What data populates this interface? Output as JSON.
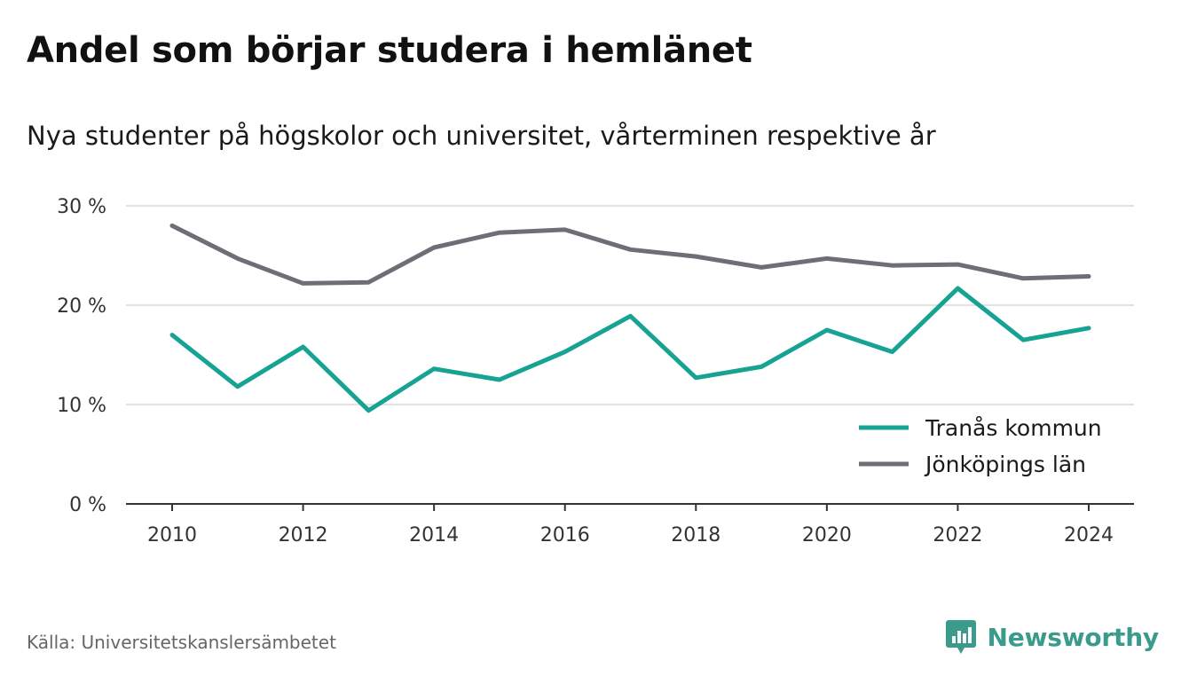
{
  "title": "Andel som börjar studera i hemlänet",
  "subtitle": "Nya studenter på högskolor och universitet, vårterminen respektive år",
  "source": "Källa: Universitetskanslersämbetet",
  "brand": {
    "name": "Newsworthy",
    "icon": "newsworthy-logo-icon",
    "color": "#3a9a8c"
  },
  "chart_data": {
    "type": "line",
    "x": [
      2010,
      2011,
      2012,
      2013,
      2014,
      2015,
      2016,
      2017,
      2018,
      2019,
      2020,
      2021,
      2022,
      2023,
      2024
    ],
    "series": [
      {
        "name": "Tranås kommun",
        "color": "#16a394",
        "values": [
          17.0,
          11.8,
          15.8,
          9.4,
          13.6,
          12.5,
          15.3,
          18.9,
          12.7,
          13.8,
          17.5,
          15.3,
          21.7,
          16.5,
          17.7
        ]
      },
      {
        "name": "Jönköpings län",
        "color": "#6f6e76",
        "values": [
          28.0,
          24.7,
          22.2,
          22.3,
          25.8,
          27.3,
          27.6,
          25.6,
          24.9,
          23.8,
          24.7,
          24.0,
          24.1,
          22.7,
          22.9
        ]
      }
    ],
    "xticks": [
      2010,
      2012,
      2014,
      2016,
      2018,
      2020,
      2022,
      2024
    ],
    "yticks": [
      0,
      10,
      20,
      30
    ],
    "ytick_labels": [
      "0 %",
      "10 %",
      "20 %",
      "30 %"
    ],
    "ylim": [
      0,
      30
    ],
    "xlim": [
      2010,
      2024
    ],
    "grid": "horizontal",
    "legend_position": "bottom-right"
  }
}
